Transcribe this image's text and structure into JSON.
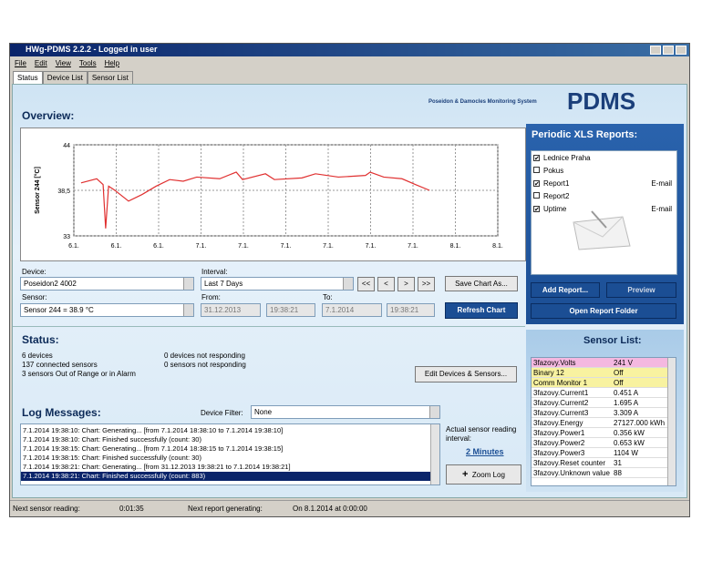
{
  "window": {
    "title": "HWg-PDMS 2.2.2 - Logged in user"
  },
  "menu": [
    "File",
    "Edit",
    "View",
    "Tools",
    "Help"
  ],
  "tabs": [
    "Status",
    "Device List",
    "Sensor List"
  ],
  "header": {
    "subtitle": "Poseidon & Damocles Monitoring System",
    "logo": "PDMS"
  },
  "overview": {
    "title": "Overview:",
    "chart": {
      "ylabel": "Sensor 244 [°C]",
      "color": "#e03030",
      "ylim": [
        33,
        44
      ],
      "yticks": [
        44,
        {
          "value": 38.5,
          "label": "38,5"
        },
        33
      ],
      "xlim": [
        0,
        10
      ],
      "xticks": [
        {
          "value": 0,
          "label": "6.1."
        },
        {
          "value": 1,
          "label": "6.1."
        },
        {
          "value": 2,
          "label": "6.1."
        },
        {
          "value": 3,
          "label": "7.1."
        },
        {
          "value": 4,
          "label": "7.1."
        },
        {
          "value": 5,
          "label": "7.1."
        },
        {
          "value": 6,
          "label": "7.1."
        },
        {
          "value": 7,
          "label": "7.1."
        },
        {
          "value": 8,
          "label": "7.1."
        },
        {
          "value": 9,
          "label": "8.1."
        },
        {
          "value": 10,
          "label": "8.1."
        }
      ],
      "x": [
        0.17,
        0.54,
        0.69,
        0.75,
        0.82,
        0.97,
        1.29,
        1.61,
        1.94,
        2.26,
        2.58,
        2.9,
        3.44,
        3.83,
        3.98,
        4.52,
        4.73,
        5.38,
        5.7,
        6.24,
        6.88,
        6.99,
        7.31,
        7.74,
        8.06,
        8.39
      ],
      "values": [
        39.4,
        39.9,
        39.2,
        33.9,
        39.0,
        38.5,
        37.2,
        38.0,
        39.0,
        39.8,
        39.6,
        40.1,
        39.9,
        40.7,
        39.8,
        40.5,
        39.8,
        40.0,
        40.5,
        40.1,
        40.3,
        40.7,
        40.1,
        39.9,
        39.2,
        38.5
      ]
    },
    "device_label": "Device:",
    "device": "Poseidon2 4002",
    "interval_label": "Interval:",
    "interval": "Last 7 Days",
    "nav": [
      "<<",
      "<",
      ">",
      ">>"
    ],
    "save_button": "Save Chart As...",
    "sensor_label": "Sensor:",
    "sensor": "Sensor 244 = 38.9 °C",
    "from_label": "From:",
    "from_date": "31.12.2013",
    "from_time": "19:38:21",
    "to_label": "To:",
    "to_date": "7.1.2014",
    "to_time": "19:38:21",
    "refresh_button": "Refresh Chart"
  },
  "reports": {
    "title": "Periodic XLS Reports:",
    "items": [
      {
        "name": "Lednice Praha",
        "checked": true
      },
      {
        "name": "Pokus",
        "checked": false
      },
      {
        "name": "Report1",
        "checked": true,
        "action": "E-mail"
      },
      {
        "name": "Report2",
        "checked": false
      },
      {
        "name": "Uptime",
        "checked": true,
        "action": "E-mail"
      }
    ],
    "add_button": "Add Report...",
    "preview_button": "Preview",
    "folder_button": "Open Report Folder"
  },
  "status": {
    "title": "Status:",
    "left": [
      "6 devices",
      "137 connected sensors",
      "3 sensors Out of Range or in Alarm"
    ],
    "right": [
      "0 devices not responding",
      "0 sensors not responding"
    ],
    "edit_button": "Edit Devices & Sensors..."
  },
  "sensor_list": {
    "title": "Sensor List:",
    "rows": [
      {
        "name": "3fazovy.Volts",
        "value": "241 V",
        "color": "#f4b8e0"
      },
      {
        "name": "Binary 12",
        "value": "Off",
        "color": "#f8f2a0"
      },
      {
        "name": "Comm Monitor 1",
        "value": "Off",
        "color": "#f8f2a0"
      },
      {
        "name": "3fazovy.Current1",
        "value": "0.451 A"
      },
      {
        "name": "3fazovy.Current2",
        "value": "1.695 A"
      },
      {
        "name": "3fazovy.Current3",
        "value": "3.309 A"
      },
      {
        "name": "3fazovy.Energy",
        "value": "27127.000 kWh"
      },
      {
        "name": "3fazovy.Power1",
        "value": "0.356 kW"
      },
      {
        "name": "3fazovy.Power2",
        "value": "0.653 kW"
      },
      {
        "name": "3fazovy.Power3",
        "value": "1104 W"
      },
      {
        "name": "3fazovy.Reset counter",
        "value": "31"
      },
      {
        "name": "3fazovy.Unknown value",
        "value": "88"
      }
    ]
  },
  "log": {
    "title": "Log Messages:",
    "filter_label": "Device Filter:",
    "filter": "None",
    "lines": [
      "7.1.2014 19:38:10: Chart: Generating... [from 7.1.2014 18:38:10 to 7.1.2014 19:38:10]",
      "7.1.2014 19:38:10: Chart: Finished successfully (count: 30)",
      "7.1.2014 19:38:15: Chart: Generating... [from 7.1.2014 18:38:15 to 7.1.2014 19:38:15]",
      "7.1.2014 19:38:15: Chart: Finished successfully (count: 30)",
      "7.1.2014 19:38:21: Chart: Generating... [from 31.12.2013 19:38:21 to 7.1.2014 19:38:21]",
      "7.1.2014 19:38:21: Chart: Finished successfully (count: 883)"
    ],
    "selected": 5,
    "interval_text": "Actual sensor reading interval:",
    "interval_value": "2 Minutes",
    "zoom_button": "Zoom Log"
  },
  "statusbar": [
    "Next sensor reading:",
    "0:01:35",
    "Next report generating:",
    "On 8.1.2014 at 0:00:00"
  ]
}
